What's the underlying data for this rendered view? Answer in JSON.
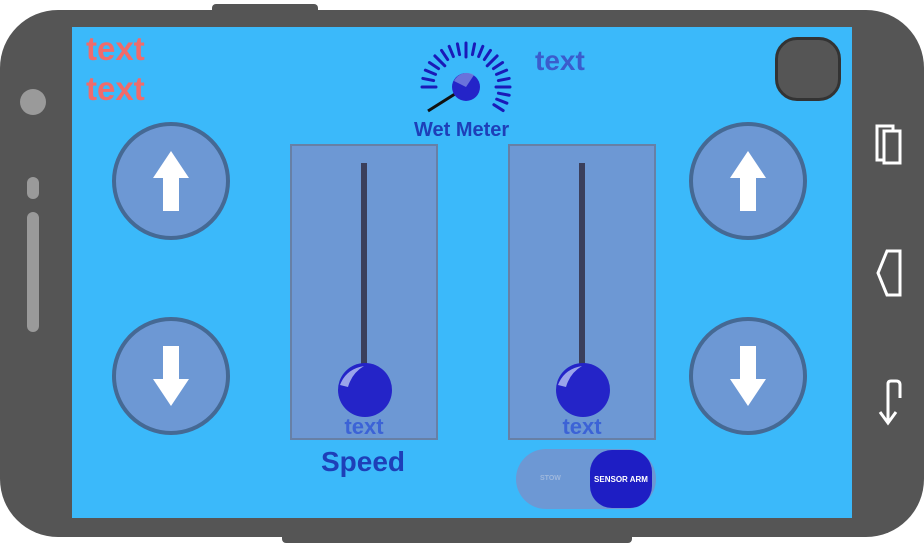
{
  "screen": {
    "status_lines": [
      "text",
      "text"
    ],
    "meter_value_text": "text",
    "wet_meter_label": "Wet Meter",
    "speed_label": "Speed",
    "left_slider": {
      "caption": "text",
      "level": 0.0
    },
    "right_slider": {
      "caption": "text",
      "level": 0.0
    },
    "toggle": {
      "off_label": "STOW",
      "on_label": "SENSOR ARM",
      "selected": "SENSOR ARM"
    }
  },
  "left_buttons": {
    "up": "arrow-up-icon",
    "down": "arrow-down-icon"
  },
  "right_buttons": {
    "up": "arrow-up-icon",
    "down": "arrow-down-icon"
  },
  "nav_bar": {
    "icons": [
      "recent-apps-icon",
      "back-icon",
      "return-icon"
    ]
  },
  "colors": {
    "screen_bg": "#3bb9fa",
    "button_fill": "#6d98d4",
    "knob": "#2424c8",
    "status_text": "#f06b6b",
    "label_text": "#3b5ccc"
  }
}
